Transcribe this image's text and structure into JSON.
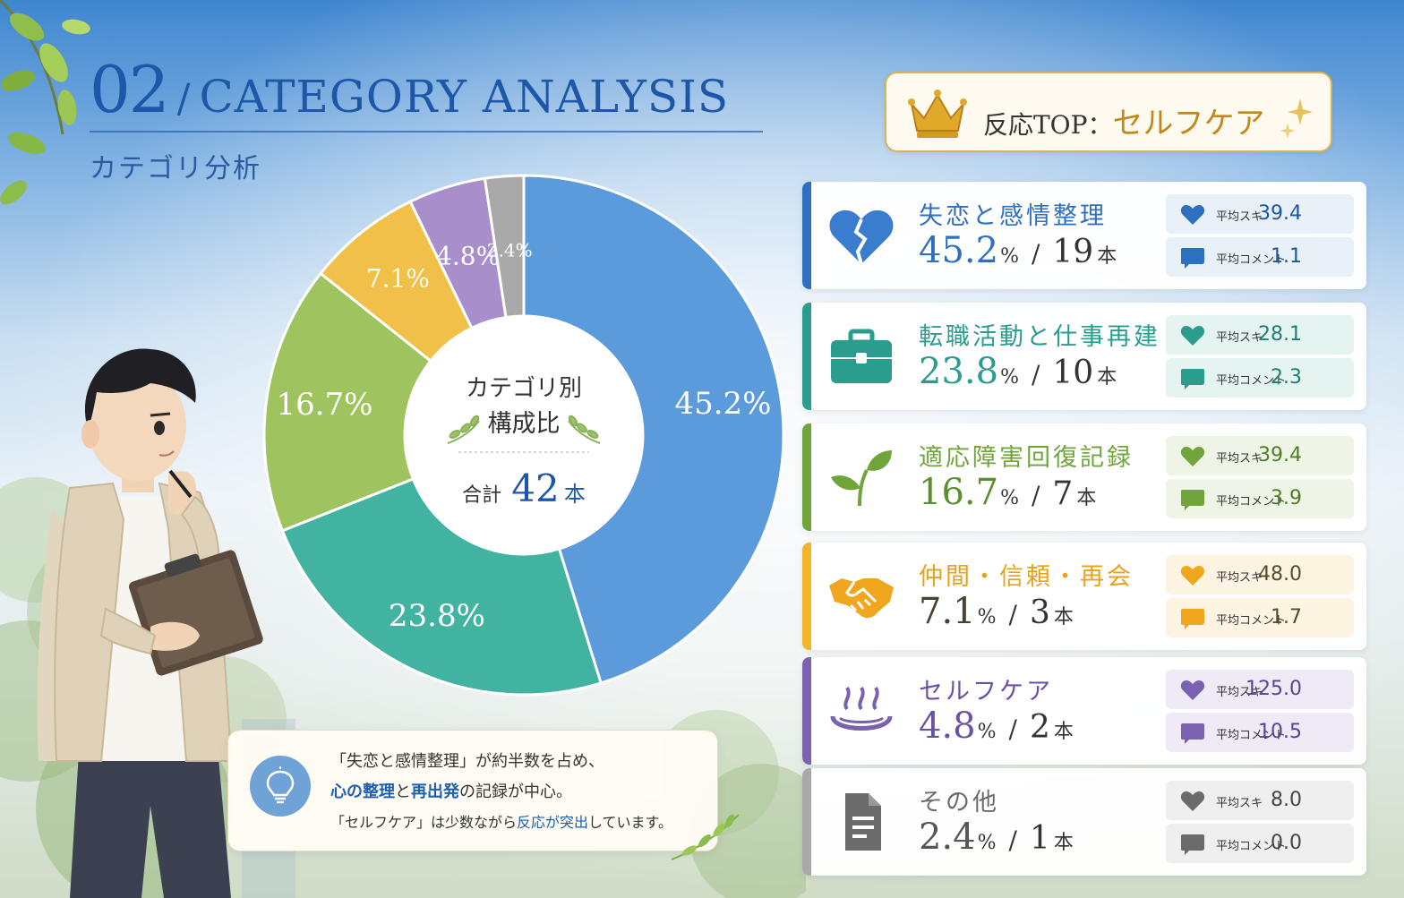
{
  "header": {
    "number": "02",
    "slash": "/",
    "title_en": "CATEGORY ANALYSIS",
    "subtitle": "カテゴリ分析"
  },
  "donut_center": {
    "title_line1": "カテゴリ別",
    "title_line2": "構成比",
    "total_label": "合計",
    "total_value": "42",
    "total_unit": "本"
  },
  "chart_data": {
    "type": "pie",
    "variant": "donut",
    "categories": [
      "失恋と感情整理",
      "転職活動と仕事再建",
      "適応障害回復記録",
      "仲間・信頼・再会",
      "セルフケア",
      "その他"
    ],
    "values": [
      45.2,
      23.8,
      16.7,
      7.1,
      4.8,
      2.4
    ],
    "labels": [
      "45.2%",
      "23.8%",
      "16.7%",
      "7.1%",
      "4.8%",
      "2.4%"
    ],
    "colors": [
      "#5b9bdc",
      "#42b3a0",
      "#9fc45f",
      "#f1c048",
      "#a88fcc",
      "#a9a9a9"
    ],
    "start": "12 o'clock, clockwise"
  },
  "top_badge": {
    "label": "反応TOP：",
    "value": "セルフケア",
    "icon": "crown-icon"
  },
  "categories": [
    {
      "name": "失恋と感情整理",
      "pct": "45.2",
      "count": "19",
      "likes_label": "平均スキ",
      "likes": "39.4",
      "comments_label": "平均コメント",
      "comments": "1.1",
      "icon": "broken-heart-icon",
      "color": "#2f6fc0",
      "metric_bg": "#e8f0f8"
    },
    {
      "name": "転職活動と仕事再建",
      "pct": "23.8",
      "count": "10",
      "likes_label": "平均スキ",
      "likes": "28.1",
      "comments_label": "平均コメント",
      "comments": "2.3",
      "icon": "briefcase-icon",
      "color": "#2a9d8f",
      "metric_bg": "#e6f4f1"
    },
    {
      "name": "適応障害回復記録",
      "pct": "16.7",
      "count": "7",
      "likes_label": "平均スキ",
      "likes": "39.4",
      "comments_label": "平均コメント",
      "comments": "3.9",
      "icon": "sprout-icon",
      "color": "#6fa53b",
      "metric_bg": "#eef5e6"
    },
    {
      "name": "仲間・信頼・再会",
      "pct": "7.1",
      "count": "3",
      "likes_label": "平均スキ",
      "likes": "48.0",
      "comments_label": "平均コメント",
      "comments": "1.7",
      "icon": "handshake-icon",
      "color": "#e8a21a",
      "metric_bg": "#fdf4e2"
    },
    {
      "name": "セルフケア",
      "pct": "4.8",
      "count": "2",
      "likes_label": "平均スキ",
      "likes": "125.0",
      "comments_label": "平均コメント",
      "comments": "10.5",
      "icon": "hot-spring-icon",
      "color": "#7b62b0",
      "metric_bg": "#efeaf6"
    },
    {
      "name": "その他",
      "pct": "2.4",
      "count": "1",
      "likes_label": "平均スキ",
      "likes": "8.0",
      "comments_label": "平均コメント",
      "comments": "0.0",
      "icon": "document-icon",
      "color": "#6b6b6b",
      "metric_bg": "#efefef"
    }
  ],
  "units": {
    "percent": "%",
    "separator": "/",
    "count": "本"
  },
  "insight": {
    "line1": "「失恋と感情整理」が約半数を占め、",
    "line2_a": "心の整理",
    "line2_b": "と",
    "line2_c": "再出発",
    "line2_d": "の記録が中心。",
    "line3_a": "「セルフケア」は少数ながら",
    "line3_b": "反応が突出",
    "line3_c": "しています。",
    "icon": "lightbulb-icon"
  }
}
